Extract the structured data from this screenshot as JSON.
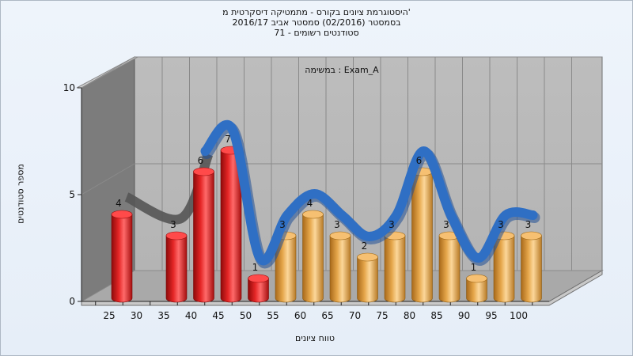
{
  "chart_data": {
    "type": "bar",
    "title_lines": [
      "היסטוגרמת ציונים בקורס - מתמטיקה דיסקרטית מ'",
      "בסמסטר  (02/2016)  סמסטר אביב 2016/17",
      "סטודנטים רשומים - 71"
    ],
    "annotation": "במשימה : Exam_A",
    "xlabel": "טווח ציונים",
    "ylabel": "מספר סטודנטים",
    "x_ticks": [
      "25",
      "30",
      "35",
      "40",
      "45",
      "50",
      "55",
      "60",
      "65",
      "70",
      "75",
      "80",
      "85",
      "90",
      "95",
      "100"
    ],
    "y_ticks": [
      "0",
      "5",
      "10"
    ],
    "ylim": [
      0,
      10
    ],
    "categories": [
      "25",
      "35",
      "40",
      "45",
      "50",
      "55",
      "60",
      "65",
      "70",
      "75",
      "80",
      "85",
      "90",
      "95",
      "100"
    ],
    "values": [
      4,
      3,
      6,
      7,
      1,
      3,
      4,
      3,
      2,
      3,
      6,
      3,
      1,
      3,
      3
    ],
    "bar_colors": [
      "#d81e1e",
      "#d81e1e",
      "#d81e1e",
      "#d81e1e",
      "#d81e1e",
      "#e1a645",
      "#e1a645",
      "#e1a645",
      "#e1a645",
      "#e1a645",
      "#e1a645",
      "#e1a645",
      "#e1a645",
      "#e1a645",
      "#e1a645"
    ],
    "curve_color": "#2f6fc4",
    "curve_shadow_color": "#555555",
    "chart_type_detail": "3D cylinder histogram with smoothed distribution ribbon",
    "grid": true
  }
}
